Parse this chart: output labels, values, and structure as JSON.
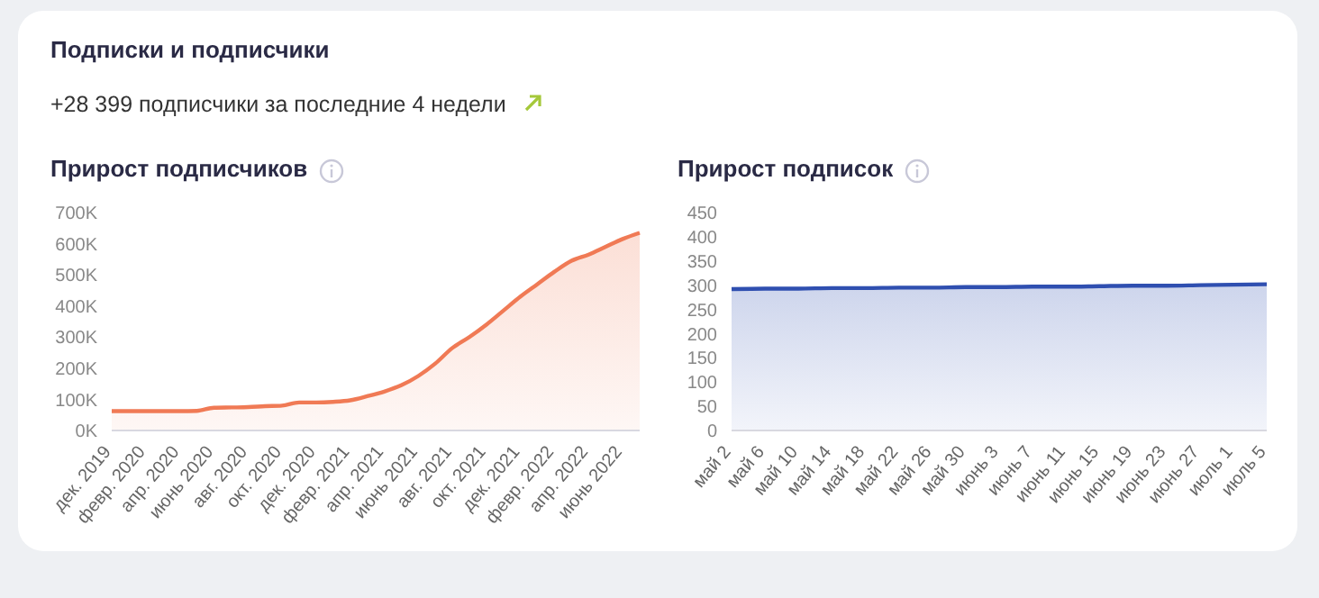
{
  "chart_data": [
    {
      "type": "other",
      "title": "Подписки и подписчики",
      "subtitle": "+28 399 подписчики за последние 4 недели"
    },
    {
      "type": "area",
      "title": "Прирост подписчиков",
      "color": "#f07a55",
      "marker": "none",
      "categories": [
        "дек. 2019",
        null,
        "февр. 2020",
        null,
        "апр. 2020",
        null,
        "июнь 2020",
        null,
        "авг. 2020",
        null,
        "окт. 2020",
        null,
        "дек. 2020",
        null,
        "февр. 2021",
        null,
        "апр. 2021",
        null,
        "июнь 2021",
        null,
        "авг. 2021",
        null,
        "окт. 2021",
        null,
        "дек. 2021",
        null,
        "февр. 2022",
        null,
        "апр. 2022",
        null,
        "июнь 2022",
        null
      ],
      "values": [
        62000,
        62000,
        62000,
        62000,
        62000,
        63000,
        73000,
        74000,
        75000,
        78000,
        80000,
        90000,
        90000,
        92000,
        97000,
        110000,
        125000,
        145000,
        175000,
        215000,
        265000,
        300000,
        340000,
        385000,
        430000,
        470000,
        510000,
        545000,
        565000,
        590000,
        615000,
        635000
      ],
      "ylim": [
        0,
        700000
      ],
      "yticks": [
        {
          "value": 0,
          "label": "0K"
        },
        {
          "value": 100000,
          "label": "100K"
        },
        {
          "value": 200000,
          "label": "200K"
        },
        {
          "value": 300000,
          "label": "300K"
        },
        {
          "value": 400000,
          "label": "400K"
        },
        {
          "value": 500000,
          "label": "500K"
        },
        {
          "value": 600000,
          "label": "600K"
        },
        {
          "value": 700000,
          "label": "700K"
        }
      ]
    },
    {
      "type": "area",
      "title": "Прирост подписок",
      "color": "#2f4fb0",
      "marker": "none",
      "categories": [
        "май 2",
        "май 6",
        "май 10",
        "май 14",
        "май 18",
        "май 22",
        "май 26",
        "май 30",
        "июнь 3",
        "июнь 7",
        "июнь 11",
        "июнь 15",
        "июнь 19",
        "июнь 23",
        "июнь 27",
        "июль 1",
        "июль 5"
      ],
      "values": [
        292,
        293,
        293,
        294,
        294,
        295,
        295,
        296,
        296,
        297,
        297,
        298,
        299,
        299,
        300,
        301,
        302
      ],
      "ylim": [
        0,
        450
      ],
      "yticks": [
        0,
        50,
        100,
        150,
        200,
        250,
        300,
        350,
        400,
        450
      ]
    }
  ]
}
